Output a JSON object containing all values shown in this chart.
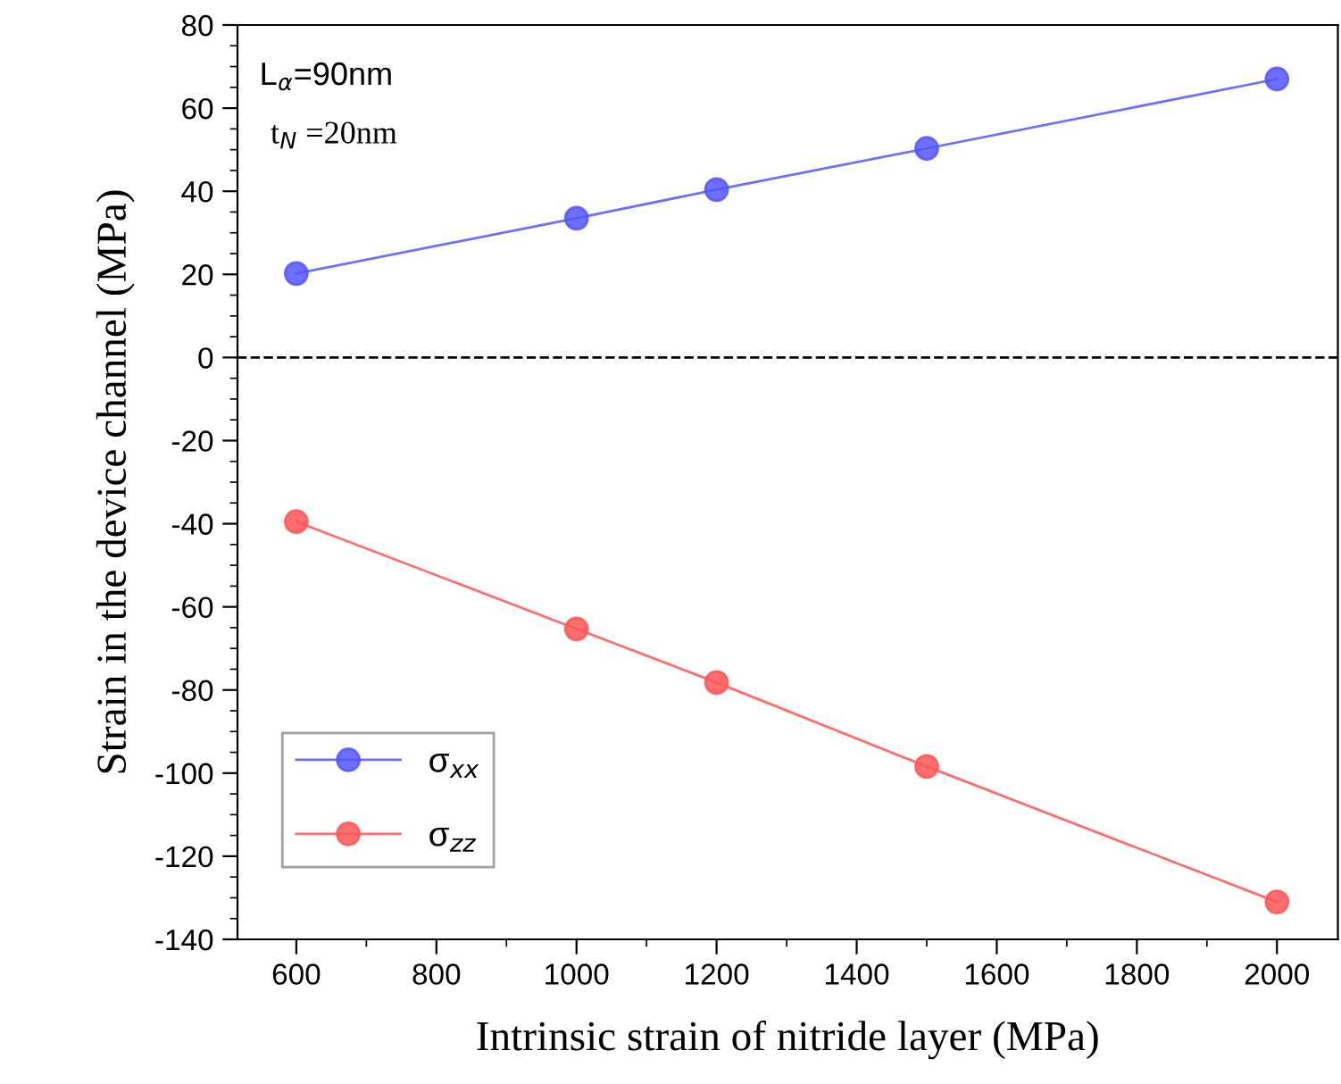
{
  "chart_data": {
    "type": "line",
    "xlabel": "Intrinsic strain of nitride layer (MPa)",
    "ylabel": "Strain in the device channel (MPa)",
    "x": [
      600,
      1000,
      1200,
      1500,
      2000
    ],
    "series": [
      {
        "name": "σ$_{xx}$",
        "color": "#5555ff",
        "values": [
          20.2,
          33.5,
          40.4,
          50.3,
          67
        ]
      },
      {
        "name": "σ$_{zz}$",
        "color": "#ff5555",
        "values": [
          -39.5,
          -65.3,
          -78.2,
          -98.4,
          -131
        ]
      }
    ],
    "xlim": [
      516,
      2087
    ],
    "xticks": [
      600,
      800,
      1000,
      1200,
      1400,
      1600,
      1800,
      2000
    ],
    "ylim": [
      -140,
      80
    ],
    "yticks": [
      -140,
      -120,
      -100,
      -80,
      -60,
      -40,
      -20,
      0,
      20,
      40,
      60,
      80
    ],
    "ref_lines": [
      {
        "axis": "y",
        "value": 0,
        "label": null,
        "color": "#000000",
        "line_style": "dashed"
      }
    ],
    "annotations": [
      "L$_{α}$=90nm",
      "t$_{N}$ =20nm"
    ],
    "marker": "circle",
    "line_style": "solid",
    "legend": "bottom left",
    "grid": false
  }
}
